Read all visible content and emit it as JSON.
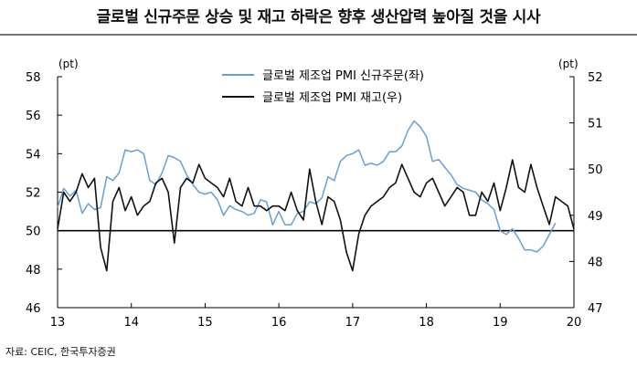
{
  "title": "글로벌 신규주문 상승 및 재고 하락은 향후 생산압력 높아질 것을 시사",
  "source": "자료: CEIC, 한국투자증권",
  "chart_data": {
    "type": "line",
    "x_start": 2013.0,
    "x_step": 0.08333,
    "x_range": [
      2013,
      2020
    ],
    "x_ticks": [
      13,
      14,
      15,
      16,
      17,
      18,
      19,
      20
    ],
    "left_axis": {
      "unit": "(pt)",
      "ylim": [
        46,
        58
      ],
      "ticks": [
        46,
        48,
        50,
        52,
        54,
        56,
        58
      ]
    },
    "right_axis": {
      "unit": "(pt)",
      "ylim": [
        47,
        52
      ],
      "ticks": [
        47,
        48,
        49,
        50,
        51,
        52
      ]
    },
    "reference_line": 50,
    "legend_position": "top-center",
    "series": [
      {
        "name": "글로벌 제조업 PMI 신규주문(좌)",
        "axis": "left",
        "color": "#6a9fd0",
        "values": [
          51.2,
          52.2,
          51.8,
          52.1,
          50.9,
          51.4,
          51.1,
          51.2,
          52.8,
          52.6,
          53.0,
          54.2,
          54.1,
          54.2,
          54.0,
          52.6,
          52.4,
          53.0,
          53.9,
          53.8,
          53.6,
          52.9,
          52.4,
          52.0,
          51.9,
          52.0,
          51.6,
          50.8,
          51.3,
          51.1,
          51.0,
          50.8,
          50.9,
          51.6,
          51.5,
          50.3,
          51.0,
          50.3,
          50.3,
          50.9,
          51.0,
          51.5,
          51.4,
          51.7,
          52.8,
          52.6,
          53.6,
          53.9,
          54.0,
          54.2,
          53.4,
          53.5,
          53.4,
          53.6,
          54.1,
          54.1,
          54.4,
          55.2,
          55.7,
          55.4,
          54.9,
          53.6,
          53.7,
          53.3,
          52.9,
          52.4,
          52.2,
          52.1,
          52.0,
          51.6,
          51.4,
          51.1,
          50.0,
          49.8,
          50.1,
          49.6,
          49.0,
          49.0,
          48.9,
          49.2,
          49.8,
          50.4
        ]
      },
      {
        "name": "글로벌 제조업 PMI 재고(우)",
        "axis": "right",
        "color": "#111111",
        "values": [
          48.7,
          49.5,
          49.3,
          49.5,
          49.9,
          49.6,
          49.8,
          48.3,
          47.8,
          49.3,
          49.6,
          49.1,
          49.4,
          49.0,
          49.2,
          49.3,
          49.7,
          49.8,
          49.5,
          48.4,
          49.6,
          49.8,
          49.7,
          50.1,
          49.8,
          49.7,
          49.6,
          49.4,
          49.8,
          49.3,
          49.2,
          49.6,
          49.2,
          49.2,
          49.1,
          49.2,
          49.2,
          49.1,
          49.5,
          49.1,
          48.9,
          50.0,
          49.3,
          48.8,
          49.4,
          49.3,
          48.9,
          48.2,
          47.8,
          48.6,
          49.0,
          49.2,
          49.3,
          49.4,
          49.6,
          49.7,
          50.1,
          49.8,
          49.5,
          49.4,
          49.7,
          49.8,
          49.5,
          49.2,
          49.4,
          49.6,
          49.5,
          49.0,
          49.0,
          49.5,
          49.3,
          49.7,
          49.1,
          49.6,
          50.2,
          49.6,
          49.5,
          50.1,
          49.6,
          49.2,
          48.8,
          49.4,
          49.3,
          49.2,
          48.7
        ]
      }
    ]
  }
}
